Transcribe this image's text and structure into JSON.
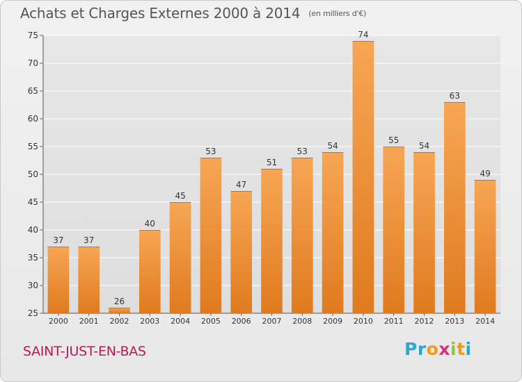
{
  "header": {
    "title": "Achats et Charges Externes 2000 à 2014",
    "subtitle": "(en milliers d'€)"
  },
  "footer": {
    "commune": "SAINT-JUST-EN-BAS",
    "logo_letters": [
      {
        "ch": "P",
        "color": "#2aa6d8"
      },
      {
        "ch": "r",
        "color": "#2aa6d8"
      },
      {
        "ch": "o",
        "color": "#f29a1f"
      },
      {
        "ch": "x",
        "color": "#d9307a"
      },
      {
        "ch": "i",
        "color": "#8cc63f"
      },
      {
        "ch": "t",
        "color": "#f29a1f"
      },
      {
        "ch": "i",
        "color": "#2aa6d8"
      }
    ]
  },
  "colors": {
    "bar_light": "#f7a655",
    "bar_dark": "#e07a1e",
    "bar_top": "#d96d12",
    "grid": "#ffffff",
    "axis_text": "#333333",
    "commune": "#c0145b"
  },
  "chart_data": {
    "type": "bar",
    "categories": [
      "2000",
      "2001",
      "2002",
      "2003",
      "2004",
      "2005",
      "2006",
      "2007",
      "2008",
      "2009",
      "2010",
      "2011",
      "2012",
      "2013",
      "2014"
    ],
    "values": [
      37,
      37,
      26,
      40,
      45,
      53,
      47,
      51,
      53,
      54,
      74,
      55,
      54,
      63,
      49
    ],
    "ylim": [
      25,
      75
    ],
    "yticks": [
      25,
      30,
      35,
      40,
      45,
      50,
      55,
      60,
      65,
      70,
      75
    ],
    "grid": true,
    "data_labels": true
  }
}
